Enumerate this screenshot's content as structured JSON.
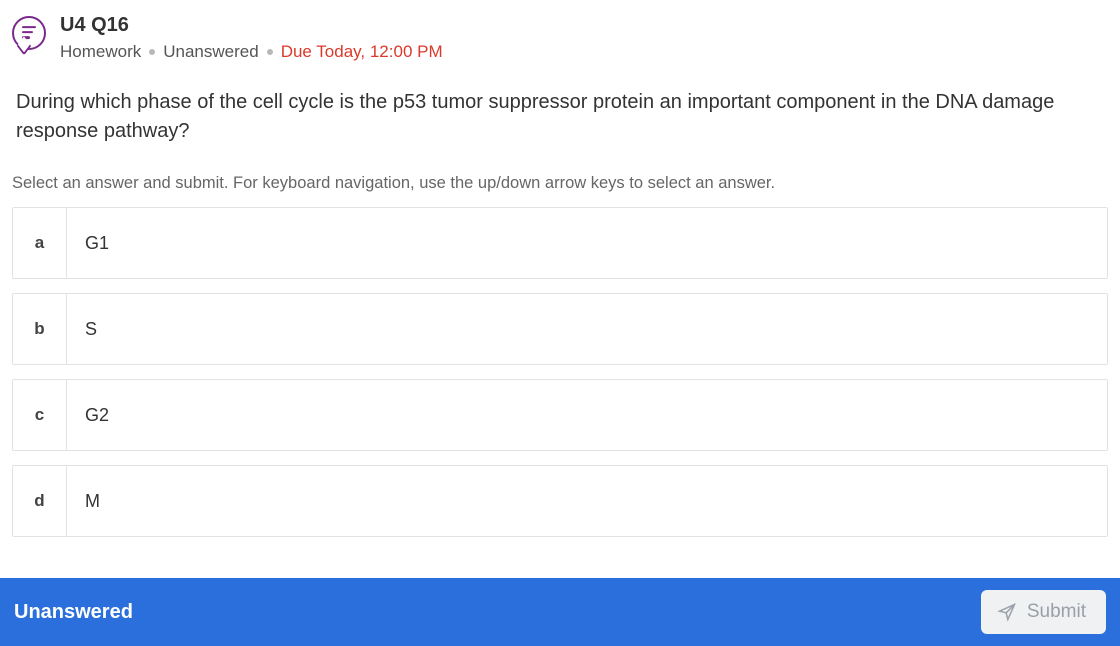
{
  "colors": {
    "accent_purple": "#7b2a8c",
    "due_red": "#d93a2b",
    "footer_blue": "#2a6fdb",
    "border_gray": "#e2e2e2",
    "muted_text": "#666666",
    "disabled_text": "#9aa0a8",
    "disabled_bg": "#f0f1f3"
  },
  "header": {
    "title": "U4 Q16",
    "meta_category": "Homework",
    "meta_status": "Unanswered",
    "meta_due": "Due Today, 12:00 PM"
  },
  "question": {
    "prompt": "During which phase of the cell cycle is the p53 tumor suppressor protein an important component in the DNA damage response pathway?",
    "instructions": "Select an answer and submit. For keyboard navigation, use the up/down arrow keys to select an answer."
  },
  "answers": [
    {
      "key": "a",
      "text": "G1"
    },
    {
      "key": "b",
      "text": "S"
    },
    {
      "key": "c",
      "text": "G2"
    },
    {
      "key": "d",
      "text": "M"
    }
  ],
  "footer": {
    "status": "Unanswered",
    "submit_label": "Submit"
  }
}
